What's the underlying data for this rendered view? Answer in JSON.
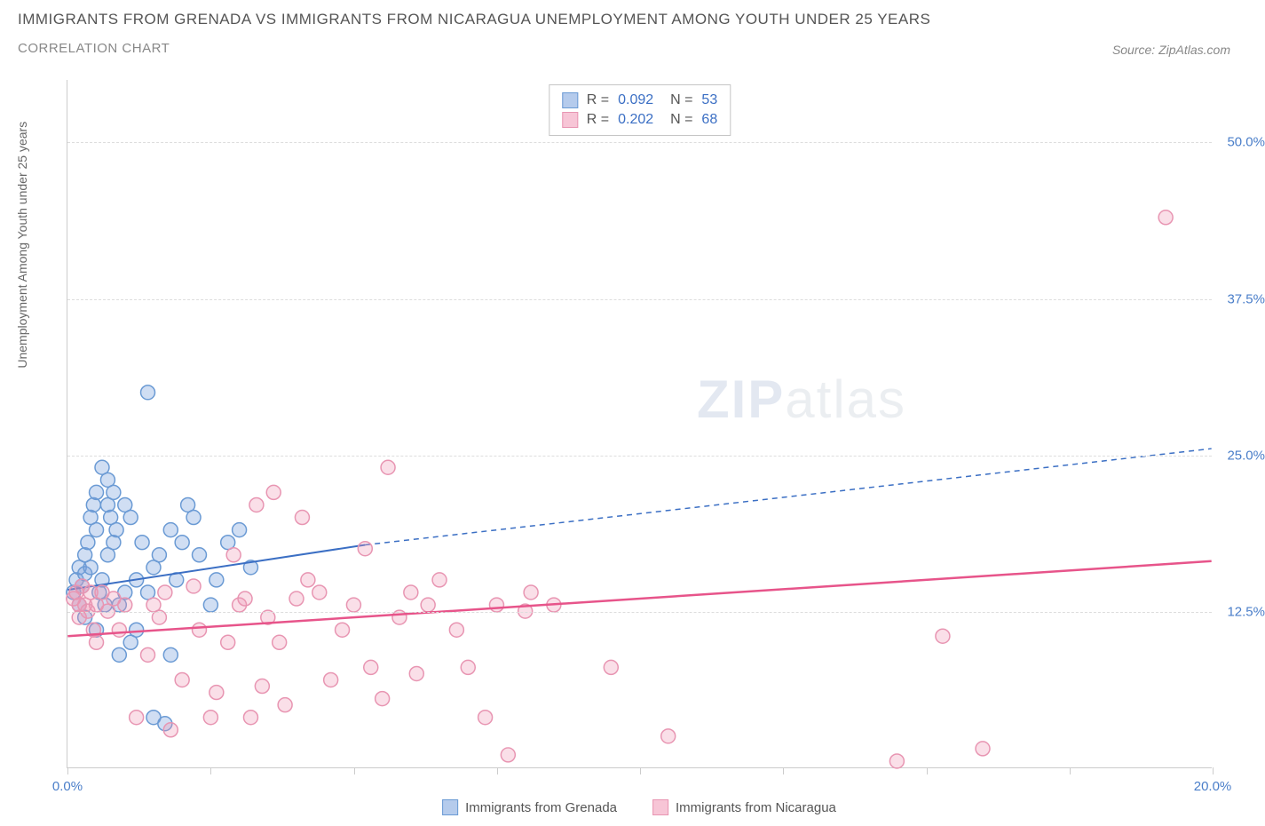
{
  "title": "Immigrants from Grenada vs Immigrants from Nicaragua Unemployment Among Youth Under 25 Years",
  "subtitle": "Correlation Chart",
  "source": "Source: ZipAtlas.com",
  "y_axis_label": "Unemployment Among Youth under 25 years",
  "watermark_bold": "ZIP",
  "watermark_light": "atlas",
  "chart": {
    "type": "scatter",
    "xlim": [
      0,
      20
    ],
    "ylim": [
      0,
      55
    ],
    "x_ticks": [
      0,
      2.5,
      5,
      7.5,
      10,
      12.5,
      15,
      17.5,
      20
    ],
    "x_tick_labels": {
      "0": "0.0%",
      "20": "20.0%"
    },
    "y_grid": [
      12.5,
      25,
      37.5,
      50
    ],
    "y_tick_labels": {
      "12.5": "12.5%",
      "25": "25.0%",
      "37.5": "37.5%",
      "50": "50.0%"
    },
    "background_color": "#ffffff",
    "grid_color": "#dddddd",
    "axis_color": "#cccccc",
    "tick_label_color": "#4a7ec9",
    "series": [
      {
        "name": "Immigrants from Grenada",
        "marker_color_fill": "rgba(120,160,220,0.35)",
        "marker_color_stroke": "#6a9ad4",
        "marker_radius": 8,
        "line_color": "#3b6fc4",
        "line_width": 2,
        "r_value": "0.092",
        "n_value": "53",
        "trend": {
          "x1": 0,
          "y1": 14.2,
          "x2": 5.2,
          "y2": 17.8,
          "x2_ext": 20,
          "y2_ext": 25.5
        },
        "points": [
          [
            0.1,
            14
          ],
          [
            0.15,
            15
          ],
          [
            0.2,
            13
          ],
          [
            0.2,
            16
          ],
          [
            0.25,
            14.5
          ],
          [
            0.3,
            15.5
          ],
          [
            0.3,
            17
          ],
          [
            0.35,
            18
          ],
          [
            0.4,
            16
          ],
          [
            0.4,
            20
          ],
          [
            0.45,
            21
          ],
          [
            0.5,
            19
          ],
          [
            0.5,
            22
          ],
          [
            0.55,
            14
          ],
          [
            0.6,
            15
          ],
          [
            0.6,
            24
          ],
          [
            0.65,
            13
          ],
          [
            0.7,
            21
          ],
          [
            0.7,
            17
          ],
          [
            0.75,
            20
          ],
          [
            0.8,
            18
          ],
          [
            0.8,
            22
          ],
          [
            0.85,
            19
          ],
          [
            0.9,
            13
          ],
          [
            0.9,
            9
          ],
          [
            1.0,
            21
          ],
          [
            1.0,
            14
          ],
          [
            1.1,
            10
          ],
          [
            1.1,
            20
          ],
          [
            1.2,
            15
          ],
          [
            1.2,
            11
          ],
          [
            1.3,
            18
          ],
          [
            1.4,
            14
          ],
          [
            1.4,
            30
          ],
          [
            1.5,
            16
          ],
          [
            1.5,
            4
          ],
          [
            1.6,
            17
          ],
          [
            1.7,
            3.5
          ],
          [
            1.8,
            19
          ],
          [
            1.8,
            9
          ],
          [
            1.9,
            15
          ],
          [
            2.0,
            18
          ],
          [
            2.1,
            21
          ],
          [
            2.2,
            20
          ],
          [
            2.3,
            17
          ],
          [
            2.5,
            13
          ],
          [
            2.6,
            15
          ],
          [
            2.8,
            18
          ],
          [
            3.0,
            19
          ],
          [
            3.2,
            16
          ],
          [
            0.3,
            12
          ],
          [
            0.5,
            11
          ],
          [
            0.7,
            23
          ]
        ]
      },
      {
        "name": "Immigrants from Nicaragua",
        "marker_color_fill": "rgba(240,150,180,0.30)",
        "marker_color_stroke": "#e895b2",
        "marker_radius": 8,
        "line_color": "#e7548a",
        "line_width": 2.5,
        "r_value": "0.202",
        "n_value": "68",
        "trend": {
          "x1": 0,
          "y1": 10.5,
          "x2": 20,
          "y2": 16.5
        },
        "points": [
          [
            0.1,
            13.5
          ],
          [
            0.15,
            14
          ],
          [
            0.2,
            12
          ],
          [
            0.2,
            13
          ],
          [
            0.25,
            14.5
          ],
          [
            0.3,
            13
          ],
          [
            0.35,
            12.5
          ],
          [
            0.4,
            14
          ],
          [
            0.45,
            11
          ],
          [
            0.5,
            13
          ],
          [
            0.5,
            10
          ],
          [
            0.6,
            14
          ],
          [
            0.7,
            12.5
          ],
          [
            0.8,
            13.5
          ],
          [
            0.9,
            11
          ],
          [
            1.0,
            13
          ],
          [
            1.2,
            4
          ],
          [
            1.4,
            9
          ],
          [
            1.5,
            13
          ],
          [
            1.6,
            12
          ],
          [
            1.7,
            14
          ],
          [
            1.8,
            3
          ],
          [
            2.0,
            7
          ],
          [
            2.2,
            14.5
          ],
          [
            2.3,
            11
          ],
          [
            2.5,
            4
          ],
          [
            2.6,
            6
          ],
          [
            2.8,
            10
          ],
          [
            3.0,
            13
          ],
          [
            3.1,
            13.5
          ],
          [
            3.2,
            4
          ],
          [
            3.4,
            6.5
          ],
          [
            3.5,
            12
          ],
          [
            3.6,
            22
          ],
          [
            3.7,
            10
          ],
          [
            3.8,
            5
          ],
          [
            4.0,
            13.5
          ],
          [
            4.2,
            15
          ],
          [
            4.4,
            14
          ],
          [
            4.6,
            7
          ],
          [
            4.8,
            11
          ],
          [
            5.0,
            13
          ],
          [
            5.2,
            17.5
          ],
          [
            5.3,
            8
          ],
          [
            5.5,
            5.5
          ],
          [
            5.6,
            24
          ],
          [
            5.8,
            12
          ],
          [
            6.0,
            14
          ],
          [
            6.1,
            7.5
          ],
          [
            6.3,
            13
          ],
          [
            6.5,
            15
          ],
          [
            6.8,
            11
          ],
          [
            7.0,
            8
          ],
          [
            7.3,
            4
          ],
          [
            7.5,
            13
          ],
          [
            7.7,
            1
          ],
          [
            8.0,
            12.5
          ],
          [
            8.1,
            14
          ],
          [
            8.5,
            13
          ],
          [
            9.5,
            8
          ],
          [
            10.5,
            2.5
          ],
          [
            14.5,
            0.5
          ],
          [
            15.3,
            10.5
          ],
          [
            16.0,
            1.5
          ],
          [
            19.2,
            44
          ],
          [
            3.3,
            21
          ],
          [
            4.1,
            20
          ],
          [
            2.9,
            17
          ]
        ]
      }
    ]
  },
  "legend": {
    "items": [
      {
        "swatch_fill": "rgba(120,160,220,0.55)",
        "swatch_border": "#6a9ad4",
        "label": "Immigrants from Grenada"
      },
      {
        "swatch_fill": "rgba(240,150,180,0.55)",
        "swatch_border": "#e895b2",
        "label": "Immigrants from Nicaragua"
      }
    ]
  }
}
